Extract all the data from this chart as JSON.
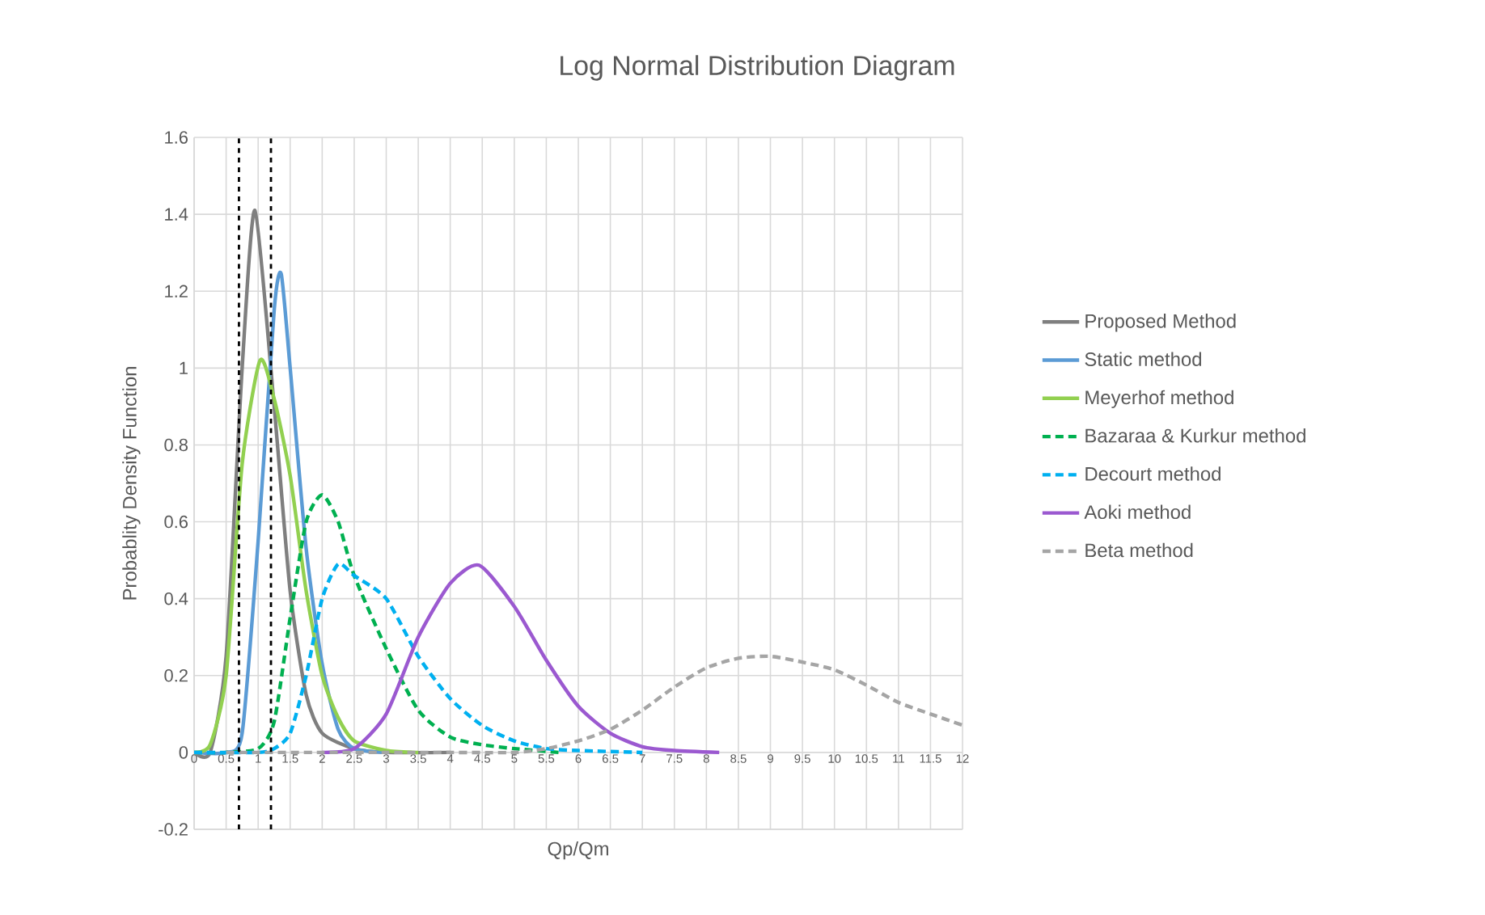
{
  "chart_data": {
    "type": "line",
    "title": "Log Normal Distribution Diagram",
    "xlabel": "Qp/Qm",
    "ylabel": "Probablity Density Function",
    "xlim": [
      0,
      12
    ],
    "xticks": [
      0,
      0.5,
      1,
      1.5,
      2,
      2.5,
      3,
      3.5,
      4,
      4.5,
      5,
      5.5,
      6,
      6.5,
      7,
      7.5,
      8,
      8.5,
      9,
      9.5,
      10,
      10.5,
      11,
      11.5,
      12
    ],
    "ylim": [
      -0.2,
      1.6
    ],
    "yticks": [
      -0.2,
      0,
      0.2,
      0.4,
      0.6,
      0.8,
      1,
      1.2,
      1.4,
      1.6
    ],
    "grid": true,
    "legend": "right",
    "ref_lines": [
      {
        "axis": "x",
        "value": 0.7,
        "color": "#000000",
        "line_style": "dashed"
      },
      {
        "axis": "x",
        "value": 1.2,
        "color": "#000000",
        "line_style": "dashed"
      }
    ],
    "series": [
      {
        "name": "Proposed Method",
        "color": "#7f7f7f",
        "line_style": "solid",
        "x": [
          0,
          0.25,
          0.5,
          0.75,
          0.95,
          1.25,
          1.5,
          1.75,
          2,
          2.5,
          3,
          4
        ],
        "values": [
          0,
          0,
          0.25,
          1.0,
          1.41,
          0.9,
          0.42,
          0.15,
          0.05,
          0.01,
          0,
          0
        ]
      },
      {
        "name": "Static method",
        "color": "#5b9bd5",
        "line_style": "solid",
        "x": [
          0,
          0.5,
          0.75,
          1,
          1.25,
          1.36,
          1.5,
          1.75,
          2,
          2.25,
          2.5,
          3
        ],
        "values": [
          0,
          0,
          0.05,
          0.55,
          1.15,
          1.245,
          1.0,
          0.53,
          0.23,
          0.06,
          0.01,
          0
        ]
      },
      {
        "name": "Meyerhof method",
        "color": "#92d050",
        "line_style": "solid",
        "x": [
          0,
          0.25,
          0.5,
          0.75,
          1.03,
          1.25,
          1.5,
          1.75,
          2,
          2.25,
          2.5,
          3,
          3.5
        ],
        "values": [
          0,
          0.02,
          0.2,
          0.75,
          1.02,
          0.92,
          0.72,
          0.42,
          0.2,
          0.09,
          0.03,
          0.005,
          0
        ]
      },
      {
        "name": "Bazaraa & Kurkur method",
        "color": "#00b050",
        "line_style": "dashed",
        "x": [
          0,
          0.5,
          1,
          1.25,
          1.5,
          1.75,
          2,
          2.25,
          2.5,
          3,
          3.5,
          4,
          4.5,
          5,
          5.7
        ],
        "values": [
          0,
          0,
          0.01,
          0.08,
          0.35,
          0.6,
          0.67,
          0.6,
          0.46,
          0.27,
          0.11,
          0.04,
          0.02,
          0.01,
          0
        ]
      },
      {
        "name": "Decourt method",
        "color": "#00b0f0",
        "line_style": "dashed",
        "x": [
          0,
          1,
          1.25,
          1.5,
          1.75,
          2,
          2.25,
          2.5,
          3,
          3.5,
          4,
          4.5,
          5,
          5.5,
          6,
          7
        ],
        "values": [
          0,
          0,
          0.01,
          0.05,
          0.2,
          0.4,
          0.49,
          0.46,
          0.4,
          0.25,
          0.14,
          0.07,
          0.03,
          0.01,
          0.005,
          0
        ]
      },
      {
        "name": "Aoki method",
        "color": "#9b59d0",
        "line_style": "solid",
        "x": [
          2,
          2.5,
          3,
          3.5,
          4,
          4.45,
          5,
          5.5,
          6,
          6.5,
          7,
          7.5,
          8.2
        ],
        "values": [
          0,
          0.01,
          0.1,
          0.3,
          0.44,
          0.487,
          0.38,
          0.24,
          0.12,
          0.05,
          0.015,
          0.005,
          0
        ]
      },
      {
        "name": "Beta method",
        "color": "#a5a5a5",
        "line_style": "dashed",
        "x": [
          0.5,
          1,
          2,
          3,
          4,
          5,
          5.5,
          6,
          6.5,
          7,
          7.5,
          8,
          8.5,
          9,
          9.5,
          10,
          10.5,
          11,
          11.5,
          12
        ],
        "values": [
          0,
          0,
          0,
          0,
          0,
          0,
          0.01,
          0.03,
          0.06,
          0.11,
          0.17,
          0.22,
          0.245,
          0.25,
          0.235,
          0.215,
          0.175,
          0.13,
          0.1,
          0.071
        ]
      }
    ]
  }
}
